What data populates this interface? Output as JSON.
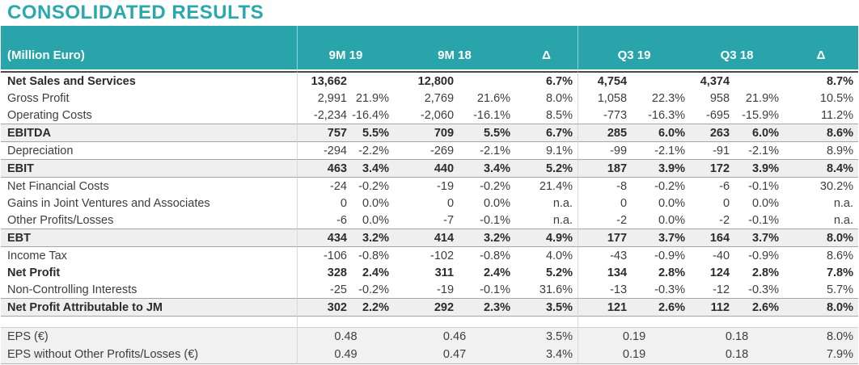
{
  "title": "CONSOLIDATED RESULTS",
  "colors": {
    "accent_teal": "#29A4AA",
    "band_gray": "#EFEFEF",
    "band_border": "#A6A6A6",
    "top_rule": "#4A4A4A",
    "text": "#3D3D3D"
  },
  "table": {
    "unit_label": "(Million Euro)",
    "col_headers": [
      "9M 19",
      "9M 18",
      "Δ",
      "Q3 19",
      "Q3 18",
      "Δ"
    ],
    "rows": [
      {
        "label": "Net Sales and Services",
        "bold": true,
        "band": false,
        "cells": [
          "13,662",
          "",
          "12,800",
          "",
          "6.7%",
          "4,754",
          "",
          "4,374",
          "",
          "8.7%"
        ]
      },
      {
        "label": "Gross Profit",
        "cells": [
          "2,991",
          "21.9%",
          "2,769",
          "21.6%",
          "8.0%",
          "1,058",
          "22.3%",
          "958",
          "21.9%",
          "10.5%"
        ]
      },
      {
        "label": "Operating Costs",
        "cells": [
          "-2,234",
          "-16.4%",
          "-2,060",
          "-16.1%",
          "8.5%",
          "-773",
          "-16.3%",
          "-695",
          "-15.9%",
          "11.2%"
        ]
      },
      {
        "label": "EBITDA",
        "bold": true,
        "band": true,
        "cells": [
          "757",
          "5.5%",
          "709",
          "5.5%",
          "6.7%",
          "285",
          "6.0%",
          "263",
          "6.0%",
          "8.6%"
        ]
      },
      {
        "label": "Depreciation",
        "cells": [
          "-294",
          "-2.2%",
          "-269",
          "-2.1%",
          "9.1%",
          "-99",
          "-2.1%",
          "-91",
          "-2.1%",
          "8.9%"
        ]
      },
      {
        "label": "EBIT",
        "bold": true,
        "band": true,
        "cells": [
          "463",
          "3.4%",
          "440",
          "3.4%",
          "5.2%",
          "187",
          "3.9%",
          "172",
          "3.9%",
          "8.4%"
        ]
      },
      {
        "label": "Net Financial Costs",
        "cells": [
          "-24",
          "-0.2%",
          "-19",
          "-0.2%",
          "21.4%",
          "-8",
          "-0.2%",
          "-6",
          "-0.1%",
          "30.2%"
        ]
      },
      {
        "label": "Gains in Joint Ventures and Associates",
        "cells": [
          "0",
          "0.0%",
          "0",
          "0.0%",
          "n.a.",
          "0",
          "0.0%",
          "0",
          "0.0%",
          "n.a."
        ]
      },
      {
        "label": "Other Profits/Losses",
        "cells": [
          "-6",
          "0.0%",
          "-7",
          "-0.1%",
          "n.a.",
          "-2",
          "0.0%",
          "-2",
          "-0.1%",
          "n.a."
        ]
      },
      {
        "label": "EBT",
        "bold": true,
        "band": true,
        "cells": [
          "434",
          "3.2%",
          "414",
          "3.2%",
          "4.9%",
          "177",
          "3.7%",
          "164",
          "3.7%",
          "8.0%"
        ]
      },
      {
        "label": "Income Tax",
        "cells": [
          "-106",
          "-0.8%",
          "-102",
          "-0.8%",
          "4.0%",
          "-43",
          "-0.9%",
          "-40",
          "-0.9%",
          "8.6%"
        ]
      },
      {
        "label": "Net Profit",
        "bold": true,
        "cells": [
          "328",
          "2.4%",
          "311",
          "2.4%",
          "5.2%",
          "134",
          "2.8%",
          "124",
          "2.8%",
          "7.8%"
        ]
      },
      {
        "label": "Non-Controlling Interests",
        "cells": [
          "-25",
          "-0.2%",
          "-19",
          "-0.1%",
          "31.6%",
          "-13",
          "-0.3%",
          "-12",
          "-0.3%",
          "5.7%"
        ]
      },
      {
        "label": "Net Profit Attributable to JM",
        "bold": true,
        "band": true,
        "cells": [
          "302",
          "2.2%",
          "292",
          "2.3%",
          "3.5%",
          "121",
          "2.6%",
          "112",
          "2.6%",
          "8.0%"
        ]
      },
      {
        "spacer": true
      },
      {
        "label": "EPS (€)",
        "eps": true,
        "cells": [
          "0.48",
          "0.46",
          "3.5%",
          "0.19",
          "0.18",
          "8.0%"
        ]
      },
      {
        "label": "EPS without Other Profits/Losses (€)",
        "eps": true,
        "cells": [
          "0.49",
          "0.47",
          "3.4%",
          "0.19",
          "0.18",
          "7.9%"
        ]
      }
    ]
  }
}
